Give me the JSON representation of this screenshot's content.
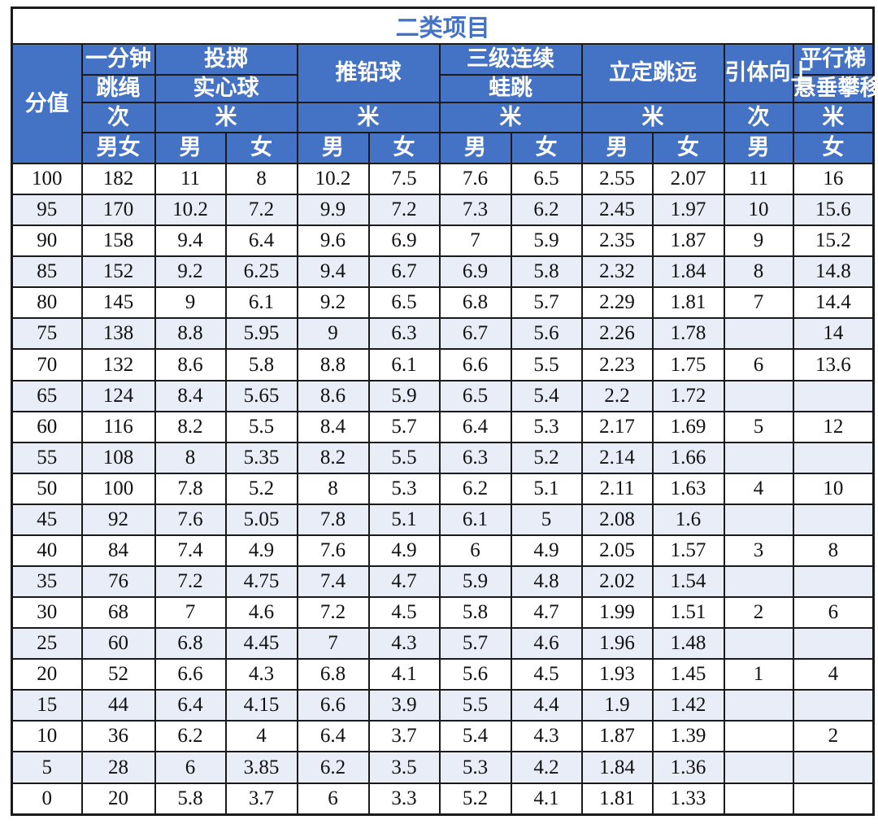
{
  "title": "二类项目",
  "colors": {
    "header_bg": "#4472C4",
    "header_text": "#ffffff",
    "title_text": "#4472C4",
    "stripe_bg": "#E9EDF7",
    "border": "#1a1a1a",
    "body_text": "#111111"
  },
  "table": {
    "header": {
      "score": "分值",
      "rope": {
        "line1": "一分钟",
        "line2": "跳绳",
        "unit": "次",
        "mf": "男女"
      },
      "medicine_ball": {
        "line1": "投掷",
        "line2": "实心球",
        "unit": "米",
        "m": "男",
        "f": "女"
      },
      "shot_put": {
        "name": "推铅球",
        "unit": "米",
        "m": "男",
        "f": "女"
      },
      "frog_jump": {
        "line1": "三级连续",
        "line2": "蛙跳",
        "unit": "米",
        "m": "男",
        "f": "女"
      },
      "standing_jump": {
        "name": "立定跳远",
        "unit": "米",
        "m": "男",
        "f": "女"
      },
      "pull_up": {
        "name": "引体向上",
        "unit": "次",
        "m": "男"
      },
      "ladder_climb": {
        "line1": "平行梯",
        "line2": "悬垂攀移",
        "unit": "米",
        "f": "女"
      }
    },
    "rows": [
      [
        "100",
        "182",
        "11",
        "8",
        "10.2",
        "7.5",
        "7.6",
        "6.5",
        "2.55",
        "2.07",
        "11",
        "16"
      ],
      [
        "95",
        "170",
        "10.2",
        "7.2",
        "9.9",
        "7.2",
        "7.3",
        "6.2",
        "2.45",
        "1.97",
        "10",
        "15.6"
      ],
      [
        "90",
        "158",
        "9.4",
        "6.4",
        "9.6",
        "6.9",
        "7",
        "5.9",
        "2.35",
        "1.87",
        "9",
        "15.2"
      ],
      [
        "85",
        "152",
        "9.2",
        "6.25",
        "9.4",
        "6.7",
        "6.9",
        "5.8",
        "2.32",
        "1.84",
        "8",
        "14.8"
      ],
      [
        "80",
        "145",
        "9",
        "6.1",
        "9.2",
        "6.5",
        "6.8",
        "5.7",
        "2.29",
        "1.81",
        "7",
        "14.4"
      ],
      [
        "75",
        "138",
        "8.8",
        "5.95",
        "9",
        "6.3",
        "6.7",
        "5.6",
        "2.26",
        "1.78",
        "",
        "14"
      ],
      [
        "70",
        "132",
        "8.6",
        "5.8",
        "8.8",
        "6.1",
        "6.6",
        "5.5",
        "2.23",
        "1.75",
        "6",
        "13.6"
      ],
      [
        "65",
        "124",
        "8.4",
        "5.65",
        "8.6",
        "5.9",
        "6.5",
        "5.4",
        "2.2",
        "1.72",
        "",
        ""
      ],
      [
        "60",
        "116",
        "8.2",
        "5.5",
        "8.4",
        "5.7",
        "6.4",
        "5.3",
        "2.17",
        "1.69",
        "5",
        "12"
      ],
      [
        "55",
        "108",
        "8",
        "5.35",
        "8.2",
        "5.5",
        "6.3",
        "5.2",
        "2.14",
        "1.66",
        "",
        ""
      ],
      [
        "50",
        "100",
        "7.8",
        "5.2",
        "8",
        "5.3",
        "6.2",
        "5.1",
        "2.11",
        "1.63",
        "4",
        "10"
      ],
      [
        "45",
        "92",
        "7.6",
        "5.05",
        "7.8",
        "5.1",
        "6.1",
        "5",
        "2.08",
        "1.6",
        "",
        ""
      ],
      [
        "40",
        "84",
        "7.4",
        "4.9",
        "7.6",
        "4.9",
        "6",
        "4.9",
        "2.05",
        "1.57",
        "3",
        "8"
      ],
      [
        "35",
        "76",
        "7.2",
        "4.75",
        "7.4",
        "4.7",
        "5.9",
        "4.8",
        "2.02",
        "1.54",
        "",
        ""
      ],
      [
        "30",
        "68",
        "7",
        "4.6",
        "7.2",
        "4.5",
        "5.8",
        "4.7",
        "1.99",
        "1.51",
        "2",
        "6"
      ],
      [
        "25",
        "60",
        "6.8",
        "4.45",
        "7",
        "4.3",
        "5.7",
        "4.6",
        "1.96",
        "1.48",
        "",
        ""
      ],
      [
        "20",
        "52",
        "6.6",
        "4.3",
        "6.8",
        "4.1",
        "5.6",
        "4.5",
        "1.93",
        "1.45",
        "1",
        "4"
      ],
      [
        "15",
        "44",
        "6.4",
        "4.15",
        "6.6",
        "3.9",
        "5.5",
        "4.4",
        "1.9",
        "1.42",
        "",
        ""
      ],
      [
        "10",
        "36",
        "6.2",
        "4",
        "6.4",
        "3.7",
        "5.4",
        "4.3",
        "1.87",
        "1.39",
        "",
        "2"
      ],
      [
        "5",
        "28",
        "6",
        "3.85",
        "6.2",
        "3.5",
        "5.3",
        "4.2",
        "1.84",
        "1.36",
        "",
        ""
      ],
      [
        "0",
        "20",
        "5.8",
        "3.7",
        "6",
        "3.3",
        "5.2",
        "4.1",
        "1.81",
        "1.33",
        "",
        ""
      ]
    ]
  }
}
